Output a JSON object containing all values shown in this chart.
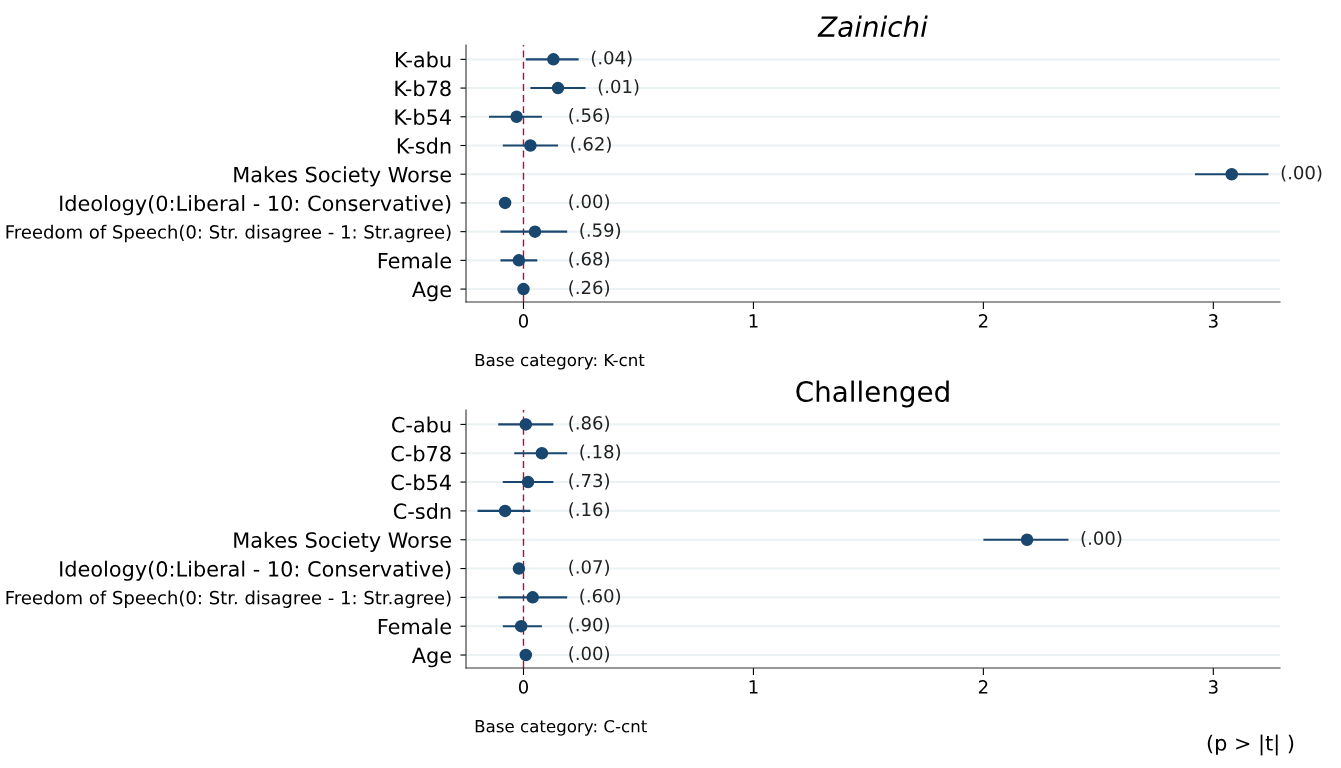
{
  "chart_data": [
    {
      "type": "scatter",
      "title": "Zainichi",
      "orientation": "horizontal",
      "categories": [
        "K-abu",
        "K-b78",
        "K-b54",
        "K-sdn",
        "Makes Society Worse",
        "Ideology(0:Liberal - 10: Conservative)",
        "Freedom of Speech(0: Str. disagree - 1: Str.agree)",
        "Female",
        "Age"
      ],
      "values": [
        0.13,
        0.15,
        -0.03,
        0.03,
        3.08,
        -0.08,
        0.05,
        -0.02,
        0.0
      ],
      "errors": [
        [
          0.01,
          0.24
        ],
        [
          0.03,
          0.27
        ],
        [
          -0.15,
          0.08
        ],
        [
          -0.09,
          0.15
        ],
        [
          2.92,
          3.24
        ],
        null,
        [
          -0.1,
          0.19
        ],
        [
          -0.1,
          0.06
        ],
        null
      ],
      "color": "#1a476f",
      "marker": "circle",
      "xlim": [
        -0.25,
        3.29
      ],
      "xticks": [
        0,
        1,
        2,
        3
      ],
      "grid": "y",
      "ref_lines": [
        {
          "axis": "x",
          "value": 0,
          "color": "#c10534",
          "line_style": "dashed"
        }
      ],
      "annotations": [
        "(.04)",
        "(.01)",
        "(.56)",
        "(.62)",
        "(.00)",
        "(.00)",
        "(.59)",
        "(.68)",
        "(.26)",
        "Base category: K-cnt"
      ]
    },
    {
      "type": "scatter",
      "title": "Challenged",
      "orientation": "horizontal",
      "categories": [
        "C-abu",
        "C-b78",
        "C-b54",
        "C-sdn",
        "Makes Society Worse",
        "Ideology(0:Liberal - 10: Conservative)",
        "Freedom of Speech(0: Str. disagree - 1: Str.agree)",
        "Female",
        "Age"
      ],
      "values": [
        0.01,
        0.08,
        0.02,
        -0.08,
        2.19,
        -0.02,
        0.04,
        -0.01,
        0.01
      ],
      "errors": [
        [
          -0.11,
          0.13
        ],
        [
          -0.04,
          0.19
        ],
        [
          -0.09,
          0.13
        ],
        [
          -0.2,
          0.03
        ],
        [
          2.0,
          2.37
        ],
        null,
        [
          -0.11,
          0.19
        ],
        [
          -0.09,
          0.08
        ],
        null
      ],
      "color": "#1a476f",
      "marker": "circle",
      "xlim": [
        -0.25,
        3.29
      ],
      "xticks": [
        0,
        1,
        2,
        3
      ],
      "grid": "y",
      "ref_lines": [
        {
          "axis": "x",
          "value": 0,
          "color": "#c10534",
          "line_style": "dashed"
        }
      ],
      "annotations": [
        "(.86)",
        "(.18)",
        "(.73)",
        "(.16)",
        "(.00)",
        "(.07)",
        "(.60)",
        "(.90)",
        "(.00)",
        "Base category: C-cnt",
        "(p > |t| )"
      ]
    }
  ]
}
